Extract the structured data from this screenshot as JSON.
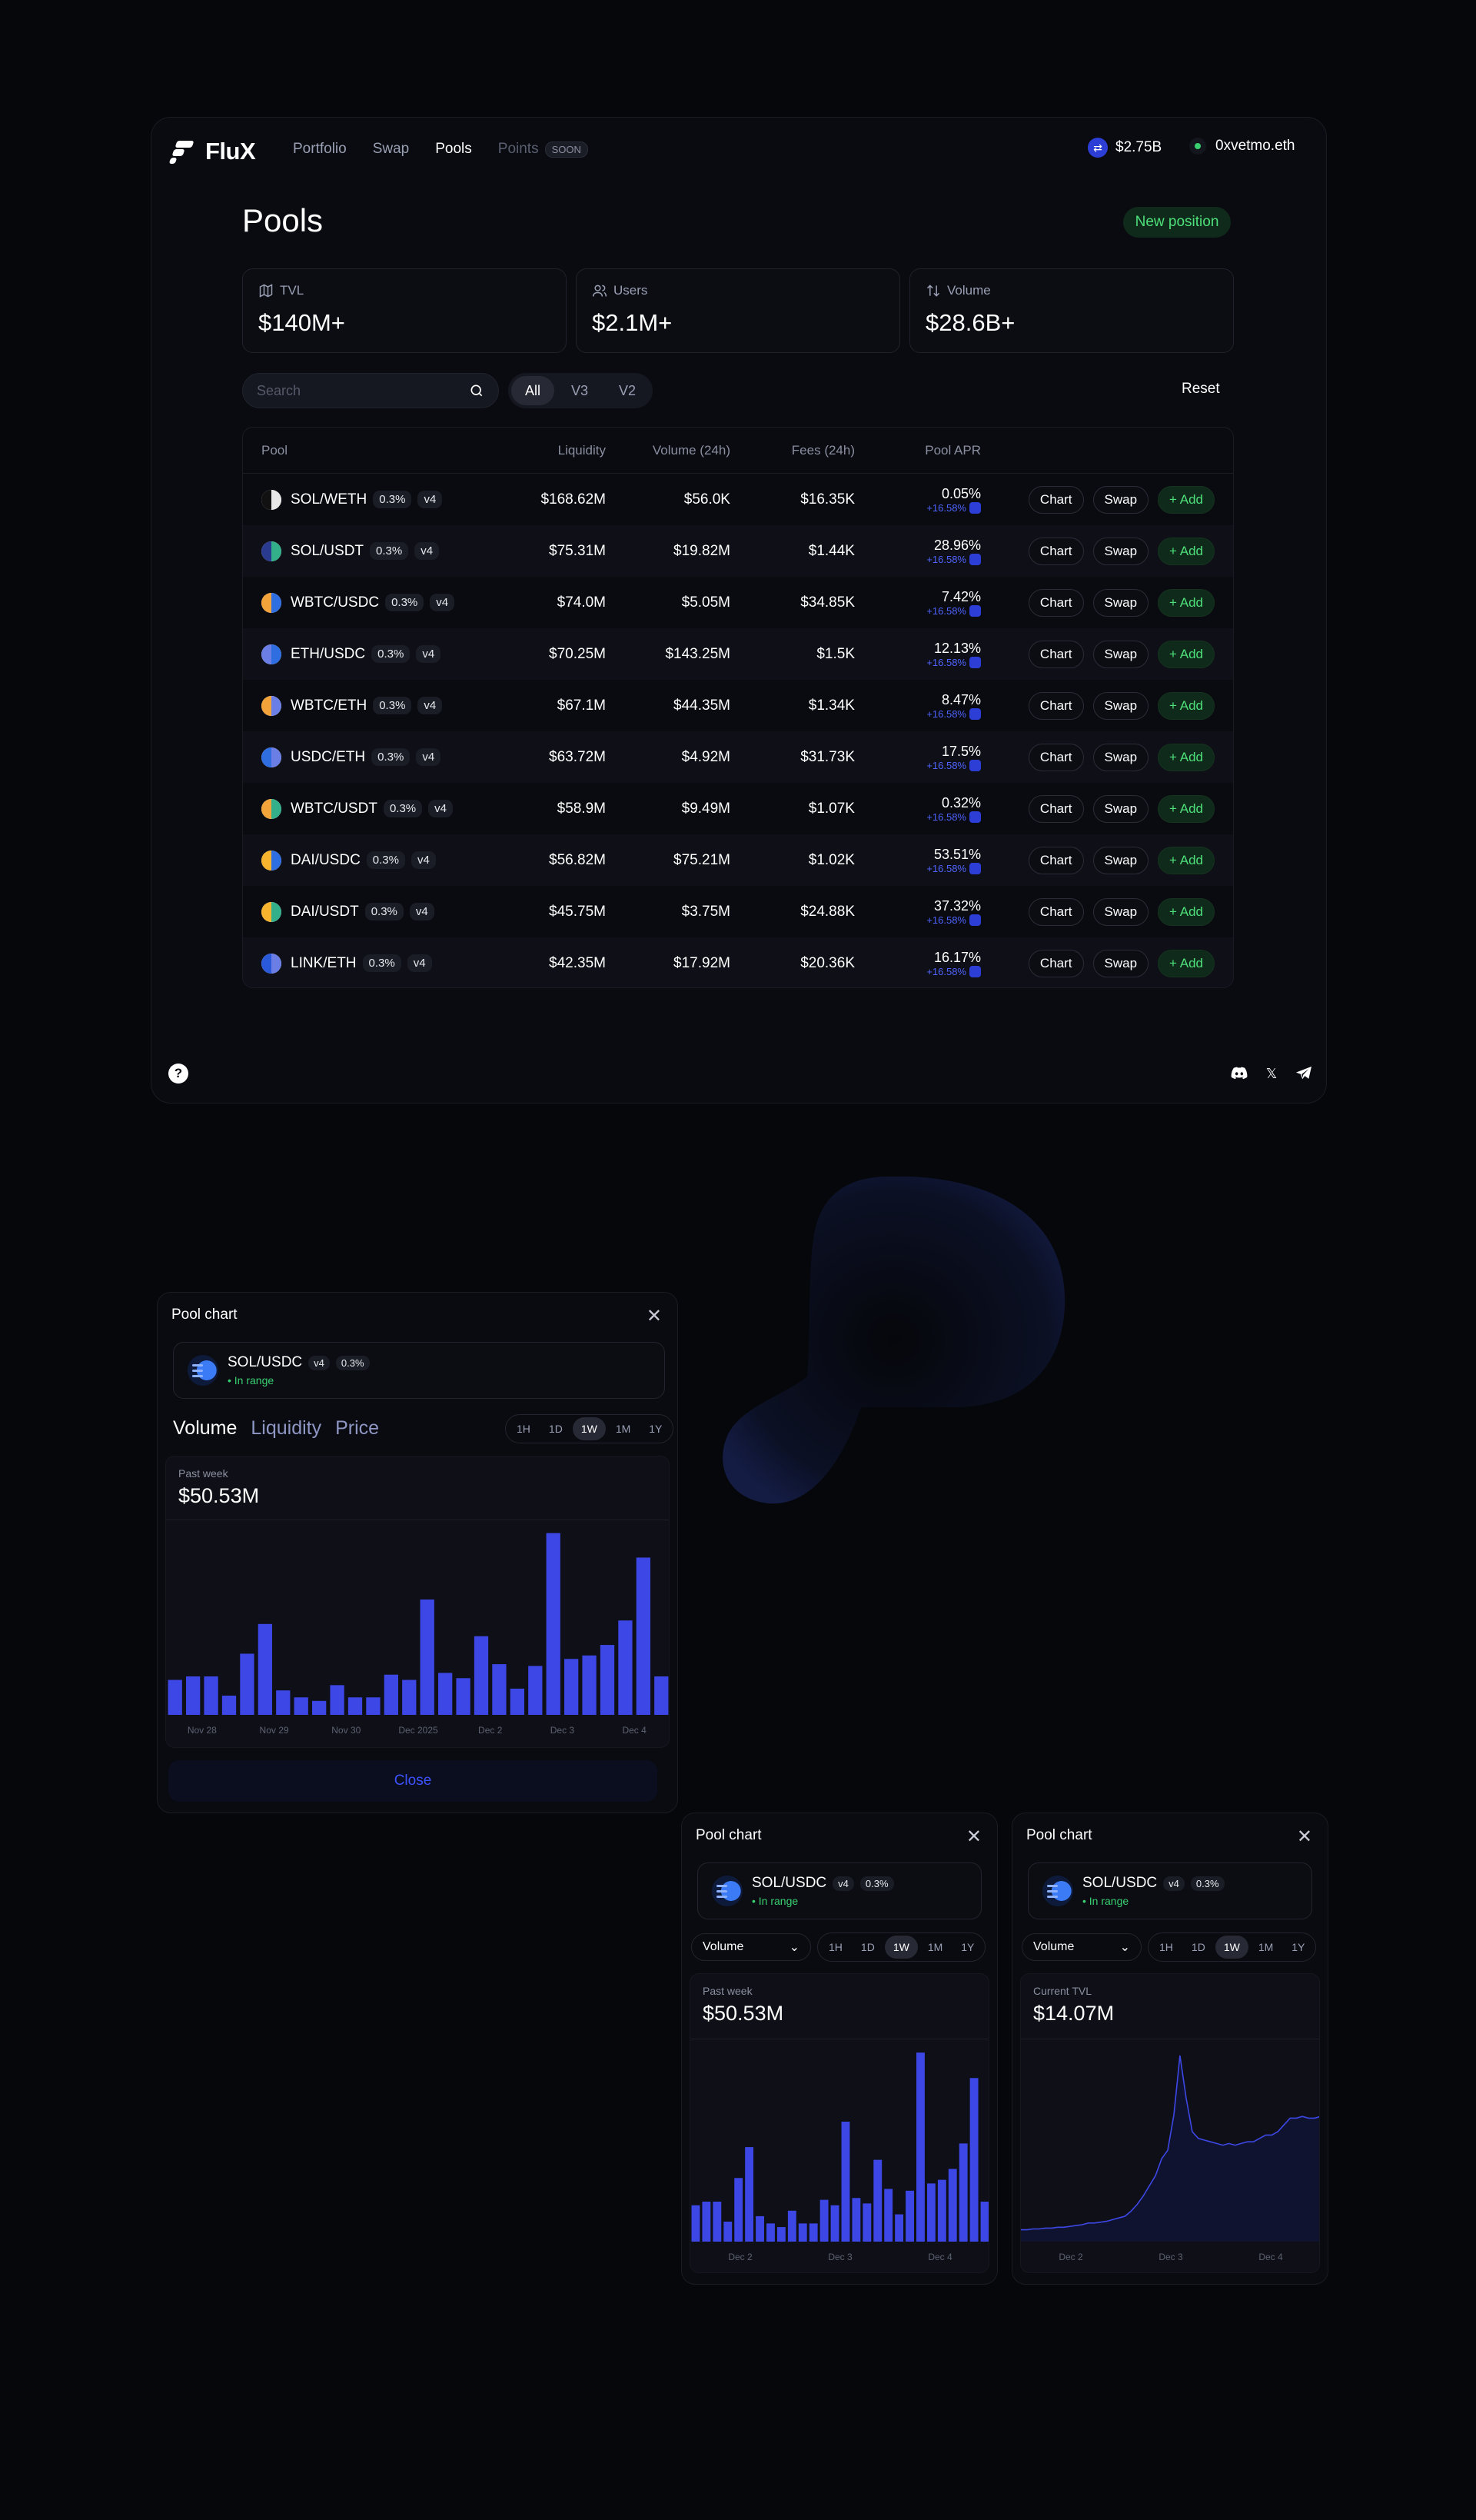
{
  "header": {
    "brand": "FluX",
    "nav": [
      {
        "label": "Portfolio",
        "active": false
      },
      {
        "label": "Swap",
        "active": false
      },
      {
        "label": "Pools",
        "active": true
      }
    ],
    "points_label": "Points",
    "soon_badge": "SOON",
    "tvl_value": "$2.75B",
    "wallet": "0xvetmo.eth"
  },
  "page": {
    "title": "Pools",
    "new_position": "New position"
  },
  "stats": [
    {
      "label": "TVL",
      "value": "$140M+",
      "icon": "map-icon"
    },
    {
      "label": "Users",
      "value": "$2.1M+",
      "icon": "users-icon"
    },
    {
      "label": "Volume",
      "value": "$28.6B+",
      "icon": "swap-arrows-icon"
    }
  ],
  "search": {
    "placeholder": "Search"
  },
  "filters": [
    "All",
    "V3",
    "V2"
  ],
  "reset": "Reset",
  "table": {
    "headers": {
      "pool": "Pool",
      "liquidity": "Liquidity",
      "volume": "Volume (24h)",
      "fees": "Fees (24h)",
      "apr": "Pool APR"
    },
    "actions": {
      "chart": "Chart",
      "swap": "Swap",
      "add": "Add"
    },
    "rows": [
      {
        "pair": "SOL/WETH",
        "fee": "0.3%",
        "version": "v4",
        "liquidity": "$168.62M",
        "volume": "$56.0K",
        "fees": "$16.35K",
        "apr": "0.05%",
        "bonus": "+16.58%",
        "c1": "#111111",
        "c2": "#e8e8e8"
      },
      {
        "pair": "SOL/USDT",
        "fee": "0.3%",
        "version": "v4",
        "liquidity": "$75.31M",
        "volume": "$19.82M",
        "fees": "$1.44K",
        "apr": "28.96%",
        "bonus": "+16.58%",
        "c1": "#2a3b8f",
        "c2": "#33b08a"
      },
      {
        "pair": "WBTC/USDC",
        "fee": "0.3%",
        "version": "v4",
        "liquidity": "$74.0M",
        "volume": "$5.05M",
        "fees": "$34.85K",
        "apr": "7.42%",
        "bonus": "+16.58%",
        "c1": "#f2a33a",
        "c2": "#2f6ee0"
      },
      {
        "pair": "ETH/USDC",
        "fee": "0.3%",
        "version": "v4",
        "liquidity": "$70.25M",
        "volume": "$143.25M",
        "fees": "$1.5K",
        "apr": "12.13%",
        "bonus": "+16.58%",
        "c1": "#6a7ee6",
        "c2": "#2f6ee0"
      },
      {
        "pair": "WBTC/ETH",
        "fee": "0.3%",
        "version": "v4",
        "liquidity": "$67.1M",
        "volume": "$44.35M",
        "fees": "$1.34K",
        "apr": "8.47%",
        "bonus": "+16.58%",
        "c1": "#f2a33a",
        "c2": "#6a7ee6"
      },
      {
        "pair": "USDC/ETH",
        "fee": "0.3%",
        "version": "v4",
        "liquidity": "$63.72M",
        "volume": "$4.92M",
        "fees": "$31.73K",
        "apr": "17.5%",
        "bonus": "+16.58%",
        "c1": "#2f6ee0",
        "c2": "#6a7ee6"
      },
      {
        "pair": "WBTC/USDT",
        "fee": "0.3%",
        "version": "v4",
        "liquidity": "$58.9M",
        "volume": "$9.49M",
        "fees": "$1.07K",
        "apr": "0.32%",
        "bonus": "+16.58%",
        "c1": "#f2a33a",
        "c2": "#33b08a"
      },
      {
        "pair": "DAI/USDC",
        "fee": "0.3%",
        "version": "v4",
        "liquidity": "$56.82M",
        "volume": "$75.21M",
        "fees": "$1.02K",
        "apr": "53.51%",
        "bonus": "+16.58%",
        "c1": "#f5b32e",
        "c2": "#2f6ee0"
      },
      {
        "pair": "DAI/USDT",
        "fee": "0.3%",
        "version": "v4",
        "liquidity": "$45.75M",
        "volume": "$3.75M",
        "fees": "$24.88K",
        "apr": "37.32%",
        "bonus": "+16.58%",
        "c1": "#f5b32e",
        "c2": "#33b08a"
      },
      {
        "pair": "LINK/ETH",
        "fee": "0.3%",
        "version": "v4",
        "liquidity": "$42.35M",
        "volume": "$17.92M",
        "fees": "$20.36K",
        "apr": "16.17%",
        "bonus": "+16.58%",
        "c1": "#2a5ada",
        "c2": "#6a7ee6"
      }
    ]
  },
  "footer": {
    "help": "?",
    "socials": [
      "discord-icon",
      "x-icon",
      "telegram-icon"
    ]
  },
  "modal_large": {
    "title": "Pool chart",
    "pair": "SOL/USDC",
    "version": "v4",
    "fee": "0.3%",
    "status": "In range",
    "metrics": [
      "Volume",
      "Liquidity",
      "Price"
    ],
    "timeframes": [
      "1H",
      "1D",
      "1W",
      "1M",
      "1Y"
    ],
    "period_label": "Past week",
    "value": "$50.53M",
    "close": "Close"
  },
  "modal_volume": {
    "title": "Pool chart",
    "pair": "SOL/USDC",
    "version": "v4",
    "fee": "0.3%",
    "status": "In range",
    "select": "Volume",
    "timeframes": [
      "1H",
      "1D",
      "1W",
      "1M",
      "1Y"
    ],
    "period_label": "Past week",
    "value": "$50.53M"
  },
  "modal_tvl": {
    "title": "Pool chart",
    "pair": "SOL/USDC",
    "version": "v4",
    "fee": "0.3%",
    "status": "In range",
    "select": "Volume",
    "timeframes": [
      "1H",
      "1D",
      "1W",
      "1M",
      "1Y"
    ],
    "period_label": "Current TVL",
    "value": "$14.07M"
  },
  "chart_data": [
    {
      "type": "bar",
      "x_tick_labels": [
        "Nov 28",
        "Nov 29",
        "Nov 30",
        "Dec 2025",
        "Dec 2",
        "Dec 3",
        "Dec 4"
      ],
      "values": [
        20,
        22,
        22,
        11,
        35,
        52,
        14,
        10,
        8,
        17,
        10,
        10,
        23,
        20,
        66,
        24,
        21,
        45,
        29,
        15,
        28,
        104,
        32,
        34,
        40,
        54,
        90,
        22
      ],
      "ylim": [
        0,
        110
      ],
      "color": "#3d47e6"
    },
    {
      "type": "bar",
      "x_tick_labels": [
        "Dec 2",
        "Dec 3",
        "Dec 4"
      ],
      "values": [
        20,
        22,
        22,
        11,
        35,
        52,
        14,
        10,
        8,
        17,
        10,
        10,
        23,
        20,
        66,
        24,
        21,
        45,
        29,
        15,
        28,
        104,
        32,
        34,
        40,
        54,
        90,
        22
      ],
      "ylim": [
        0,
        110
      ],
      "color": "#3d47e6"
    },
    {
      "type": "line",
      "x_tick_labels": [
        "Dec 2",
        "Dec 3",
        "Dec 4"
      ],
      "values": [
        6.2,
        6.2,
        6.25,
        6.25,
        6.3,
        6.3,
        6.35,
        6.35,
        6.4,
        6.45,
        6.5,
        6.6,
        6.6,
        6.65,
        6.7,
        6.8,
        6.9,
        7.0,
        7.3,
        7.7,
        8.2,
        8.8,
        9.4,
        10.4,
        10.9,
        13.0,
        16.5,
        14.0,
        12.0,
        11.6,
        11.5,
        11.4,
        11.3,
        11.2,
        11.3,
        11.2,
        11.3,
        11.4,
        11.4,
        11.6,
        11.8,
        11.8,
        12.0,
        12.4,
        12.8,
        12.8,
        12.9,
        12.8,
        12.8,
        12.9
      ],
      "ylim": [
        5.5,
        17.5
      ],
      "color": "#3d47e6"
    }
  ]
}
